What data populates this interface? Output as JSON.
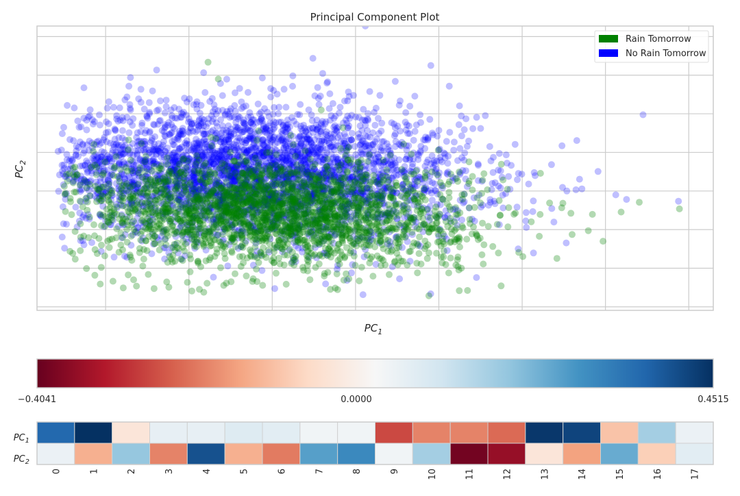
{
  "chart_data": [
    {
      "type": "scatter",
      "title": "Principal Component Plot",
      "xlabel": "PC",
      "xlabel_sub": "1",
      "ylabel": "PC",
      "ylabel_sub": "2",
      "x_tick_labels_visible": false,
      "y_tick_labels_visible": false,
      "xlim": [
        -4.8,
        9.0
      ],
      "ylim": [
        -3.4,
        4.7
      ],
      "x_gridlines": [
        -3.4,
        -1.7,
        0.0,
        1.7,
        3.4,
        5.1,
        6.8,
        8.5
      ],
      "y_gridlines": [
        -3.3,
        -2.2,
        -1.1,
        0.0,
        1.1,
        2.2,
        3.3,
        4.4
      ],
      "grid": true,
      "legend_position": "top-right",
      "series": [
        {
          "name": "Rain Tomorrow",
          "color": "#008000",
          "alpha": 0.3,
          "center": [
            0.0,
            -0.6
          ],
          "spread": [
            2.0,
            0.75
          ],
          "count": 2400,
          "points": [
            [
              -3.79,
              -2.21
            ],
            [
              -3.62,
              -2.4
            ],
            [
              -4.02,
              -1.94
            ],
            [
              -3.51,
              -2.65
            ],
            [
              -3.25,
              -2.57
            ],
            [
              -3.04,
              -2.76
            ],
            [
              -2.77,
              -2.71
            ],
            [
              -2.41,
              -2.78
            ],
            [
              -2.11,
              -2.74
            ],
            [
              -1.64,
              -2.85
            ],
            [
              -1.33,
              -2.63
            ],
            [
              -0.99,
              -2.69
            ],
            [
              -0.31,
              -2.58
            ],
            [
              0.64,
              -2.26
            ],
            [
              1.32,
              -2.36
            ],
            [
              2.23,
              -1.93
            ],
            [
              2.67,
              -2.0
            ],
            [
              3.47,
              -2.05
            ],
            [
              3.79,
              -2.15
            ],
            [
              4.5,
              -1.58
            ],
            [
              5.03,
              -1.75
            ],
            [
              5.45,
              -1.29
            ],
            [
              6.12,
              -1.24
            ],
            [
              6.45,
              -1.13
            ],
            [
              7.12,
              -0.6
            ],
            [
              8.31,
              -0.51
            ],
            [
              7.49,
              -0.32
            ],
            [
              6.75,
              -1.43
            ],
            [
              5.81,
              -1.92
            ],
            [
              3.79,
              -1.88
            ],
            [
              -1.1,
              3.19
            ],
            [
              -1.31,
              3.67
            ],
            [
              1.0,
              2.31
            ],
            [
              4.8,
              0.05
            ]
          ]
        },
        {
          "name": "No Rain Tomorrow",
          "color": "#0000ff",
          "alpha": 0.25,
          "center": [
            -0.4,
            0.5
          ],
          "spread": [
            2.2,
            0.95
          ],
          "count": 3600,
          "points": [
            [
              1.9,
              4.7
            ],
            [
              0.83,
              3.78
            ],
            [
              1.03,
              3.35
            ],
            [
              1.13,
              3.11
            ],
            [
              2.12,
              2.36
            ],
            [
              3.03,
              1.95
            ],
            [
              3.4,
              1.73
            ],
            [
              -1.4,
              3.37
            ],
            [
              -2.51,
              2.52
            ],
            [
              -4.37,
              1.13
            ],
            [
              -4.14,
              0.86
            ],
            [
              -4.34,
              0.46
            ],
            [
              -4.26,
              0.18
            ],
            [
              -4.36,
              -0.01
            ],
            [
              -4.27,
              -0.45
            ],
            [
              -4.01,
              -0.46
            ],
            [
              -3.71,
              0.65
            ],
            [
              -3.43,
              1.1
            ],
            [
              -3.58,
              -0.21
            ],
            [
              -3.42,
              0.32
            ],
            [
              -3.52,
              -0.68
            ],
            [
              -3.49,
              -1.72
            ],
            [
              -3.0,
              -1.24
            ],
            [
              -2.84,
              0.22
            ],
            [
              -2.63,
              -0.09
            ],
            [
              -2.36,
              1.06
            ],
            [
              -1.7,
              2.06
            ],
            [
              6.32,
              0.06
            ],
            [
              7.01,
              -0.11
            ],
            [
              7.23,
              -0.24
            ],
            [
              8.29,
              -0.29
            ],
            [
              6.0,
              -1.48
            ],
            [
              5.02,
              -1.65
            ],
            [
              3.81,
              1.89
            ]
          ]
        }
      ]
    },
    {
      "type": "heatmap",
      "colormap": "RdBu",
      "colorbar_ticks": [
        "−0.4041",
        "0.0000",
        "0.4515"
      ],
      "vmin": -0.4041,
      "vmax": 0.4515,
      "rows": [
        {
          "label": "PC",
          "sub": "1"
        },
        {
          "label": "PC",
          "sub": "2"
        }
      ],
      "columns": [
        "0",
        "1",
        "2",
        "3",
        "4",
        "5",
        "6",
        "7",
        "8",
        "9",
        "10",
        "11",
        "12",
        "13",
        "14",
        "15",
        "16",
        "17"
      ],
      "values": [
        [
          0.36,
          0.45,
          -0.03,
          0.06,
          0.06,
          0.08,
          0.07,
          0.04,
          0.04,
          -0.26,
          -0.19,
          -0.19,
          -0.22,
          0.44,
          0.42,
          -0.1,
          0.17,
          0.05
        ],
        [
          0.05,
          -0.13,
          0.19,
          -0.19,
          0.4,
          -0.13,
          -0.2,
          0.26,
          0.3,
          0.04,
          0.17,
          -0.39,
          -0.35,
          -0.03,
          -0.15,
          0.24,
          -0.08,
          0.07
        ]
      ]
    }
  ]
}
